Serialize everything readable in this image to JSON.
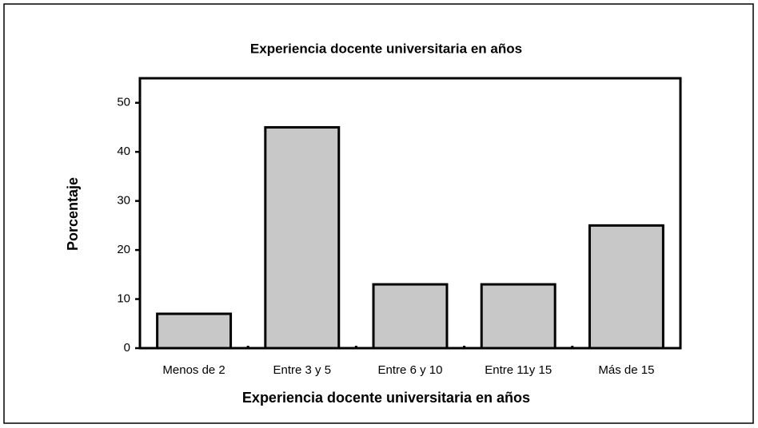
{
  "chart_data": {
    "type": "bar",
    "title": "Experiencia docente universitaria en años",
    "x_label": "Experiencia docente universitaria en años",
    "y_label": "Porcentaje",
    "categories": [
      "Menos de 2",
      "Entre 3 y 5",
      "Entre 6 y 10",
      "Entre 11y 15",
      "Más de 15"
    ],
    "values": [
      7,
      45,
      13,
      13,
      25
    ],
    "color": "#c8c8c8",
    "ylim": [
      0,
      55
    ],
    "yticks": [
      0,
      10,
      20,
      30,
      40,
      50
    ],
    "grid": false
  }
}
